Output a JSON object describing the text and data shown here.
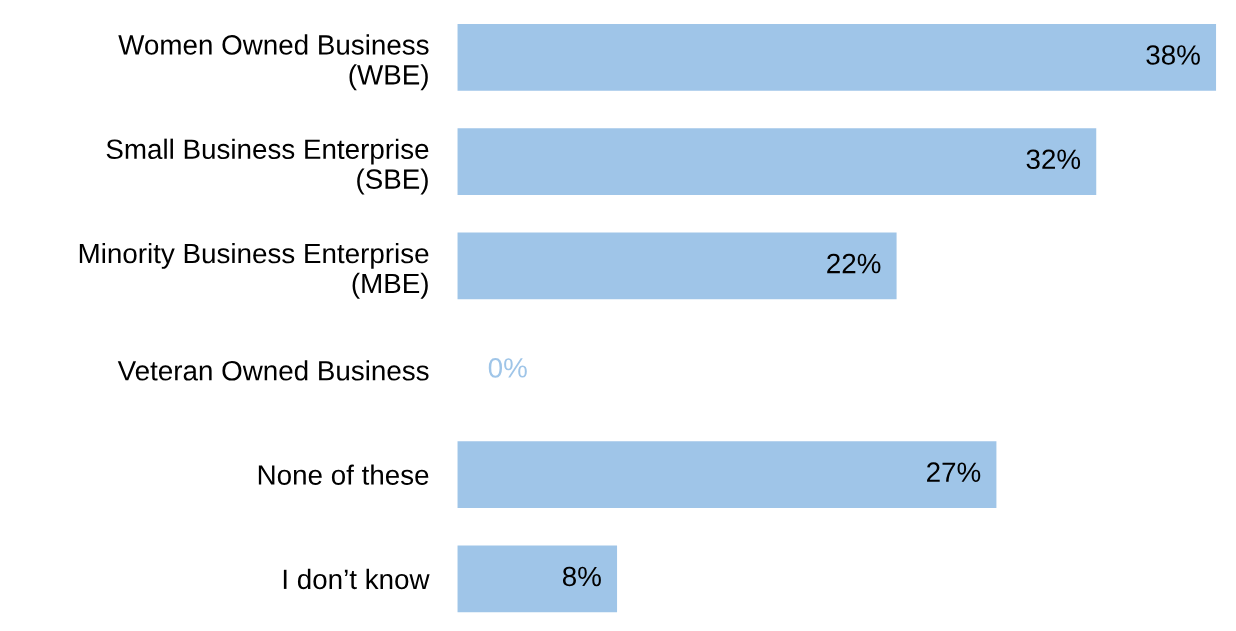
{
  "chart_data": {
    "type": "bar",
    "orientation": "horizontal",
    "categories": [
      "Women Owned Business\n(WBE)",
      "Small Business Enterprise\n(SBE)",
      "Minority Business Enterprise\n(MBE)",
      "Veteran Owned Business",
      "None of these",
      "I don’t know"
    ],
    "values": [
      38,
      32,
      22,
      0,
      27,
      8
    ],
    "value_labels": [
      "38%",
      "32%",
      "22%",
      "0%",
      "27%",
      "8%"
    ],
    "color": "#9fc5e8",
    "grid": false,
    "tick_labels": "y"
  }
}
